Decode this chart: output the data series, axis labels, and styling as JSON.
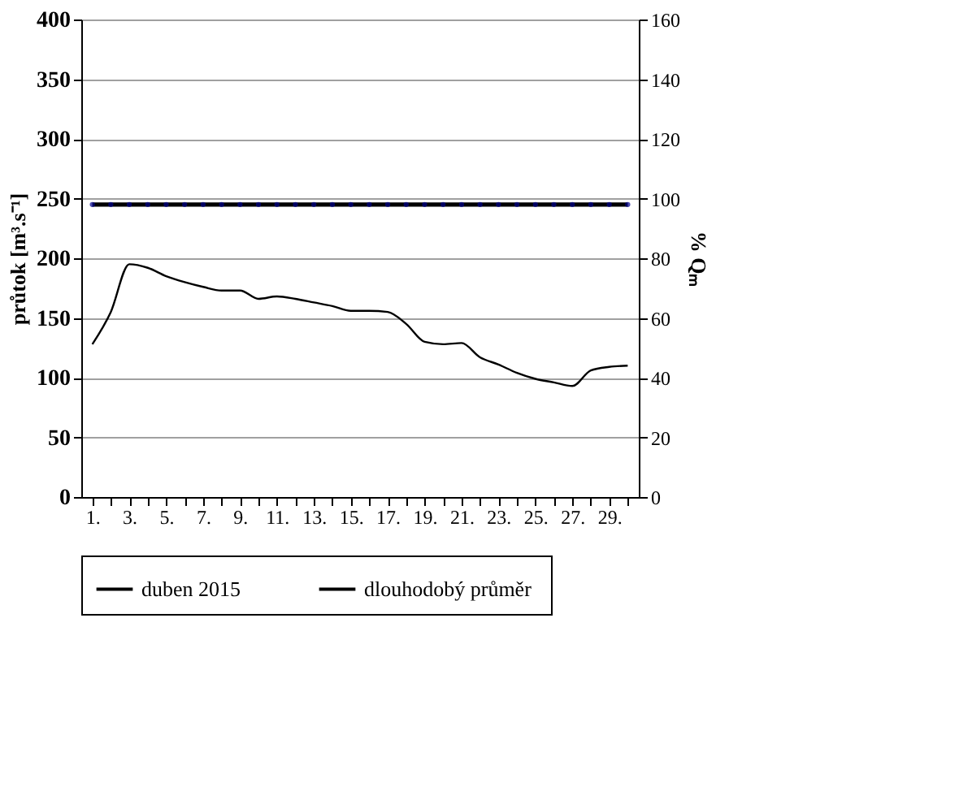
{
  "chart_data": {
    "type": "line",
    "categories": [
      "1.",
      null,
      "3.",
      null,
      "5.",
      null,
      "7.",
      null,
      "9.",
      null,
      "11.",
      null,
      "13.",
      null,
      "15.",
      null,
      "17.",
      null,
      "19.",
      null,
      "21.",
      null,
      "23.",
      null,
      "25.",
      null,
      "27.",
      null,
      "29.",
      null
    ],
    "series": [
      {
        "name": "duben  2015",
        "color": "#000000",
        "marker": "none",
        "values": [
          128,
          155,
          195,
          192,
          185,
          180,
          176,
          173,
          173,
          166,
          168,
          166,
          163,
          160,
          156,
          156,
          155,
          145,
          130,
          128,
          129,
          117,
          111,
          104,
          99,
          96,
          93,
          106,
          109,
          110
        ]
      },
      {
        "name": "dlouhodobý  průměr",
        "color": "#000000",
        "marker": "circle",
        "values": [
          245,
          245,
          245,
          245,
          245,
          245,
          245,
          245,
          245,
          245,
          245,
          245,
          245,
          245,
          245,
          245,
          245,
          245,
          245,
          245,
          245,
          245,
          245,
          245,
          245,
          245,
          245,
          245,
          245,
          245
        ]
      }
    ],
    "ylabel": "průtok [m³.s⁻¹]",
    "y2label": "% Qₘ",
    "ylim": [
      0,
      400
    ],
    "yticks": [
      0,
      50,
      100,
      150,
      200,
      250,
      300,
      350,
      400
    ],
    "y2lim": [
      0,
      160
    ],
    "y2ticks": [
      0,
      20,
      40,
      60,
      80,
      100,
      120,
      140,
      160
    ],
    "grid": "y",
    "legend": "bottom",
    "line_style": "solid"
  }
}
